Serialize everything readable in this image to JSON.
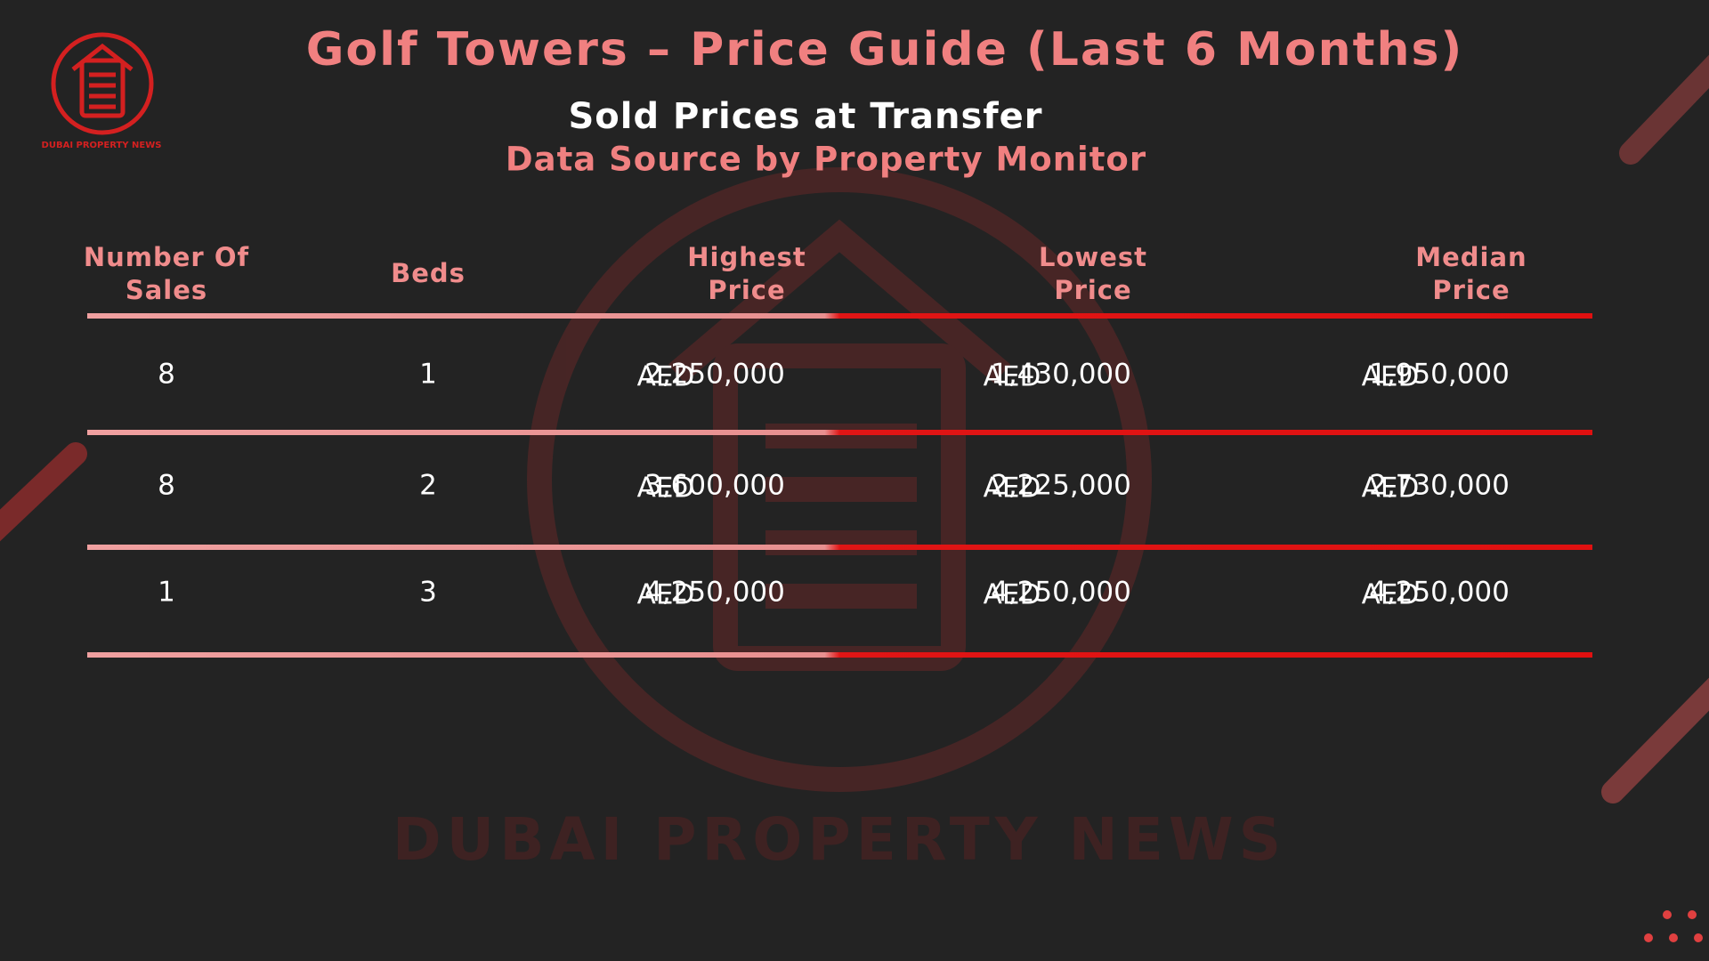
{
  "logo": {
    "text": "DUBAI PROPERTY NEWS"
  },
  "header": {
    "title": "Golf Towers – Price Guide (Last 6 Months)",
    "subtitle": "Sold Prices at Transfer",
    "source": "Data Source by Property Monitor"
  },
  "table": {
    "columns": [
      [
        "Number Of",
        "Sales"
      ],
      [
        "Beds"
      ],
      [
        "Highest",
        "Price"
      ],
      [
        "Lowest",
        "Price"
      ],
      [
        "Median",
        "Price"
      ]
    ],
    "rows": [
      [
        "8",
        "1",
        {
          "currency": "AED",
          "amount": "2,250,000"
        },
        {
          "currency": "AED",
          "amount": "1,430,000"
        },
        {
          "currency": "AED",
          "amount": "1,950,000"
        }
      ],
      [
        "8",
        "2",
        {
          "currency": "AED",
          "amount": "3,600,000"
        },
        {
          "currency": "AED",
          "amount": "2,225,000"
        },
        {
          "currency": "AED",
          "amount": "2,730,000"
        }
      ],
      [
        "1",
        "3",
        {
          "currency": "AED",
          "amount": "4,250,000"
        },
        {
          "currency": "AED",
          "amount": "4,250,000"
        },
        {
          "currency": "AED",
          "amount": "4,250,000"
        }
      ]
    ]
  },
  "watermark": {
    "text": "DUBAI PROPERTY NEWS"
  }
}
